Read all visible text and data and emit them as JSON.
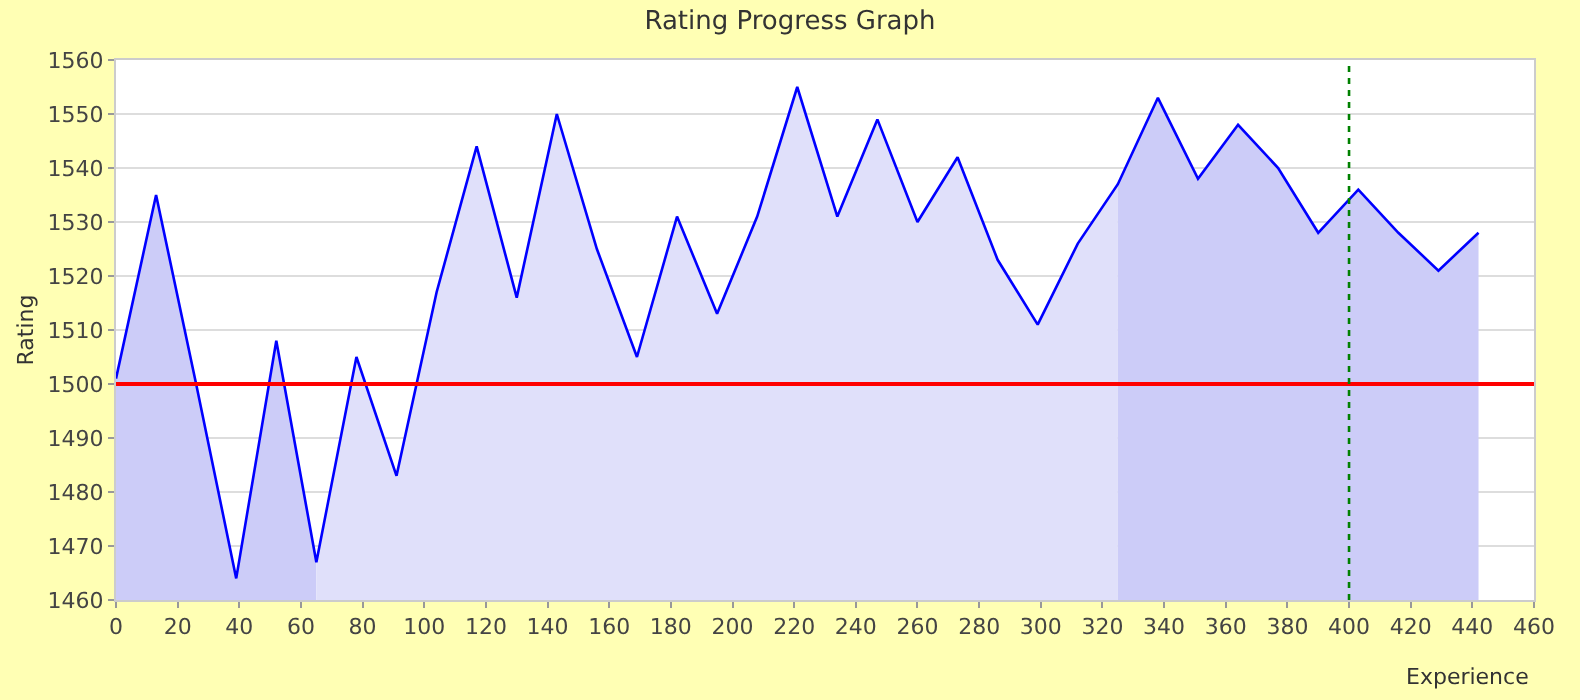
{
  "chart_data": {
    "type": "line",
    "title": "Rating Progress Graph",
    "xlabel": "Experience",
    "ylabel": "Rating",
    "series": [
      {
        "type": "area",
        "color": "#ccccf8",
        "x": [
          0,
          13,
          26,
          39,
          52,
          65
        ],
        "values": [
          1501,
          1535,
          1500,
          1464,
          1508,
          1467
        ]
      },
      {
        "type": "area",
        "color": "#e0e0fa",
        "x": [
          65,
          78,
          91,
          104,
          117,
          130,
          143,
          156,
          169,
          182,
          195,
          208,
          221,
          234,
          247,
          260,
          273,
          286,
          299,
          312,
          325
        ],
        "values": [
          1467,
          1505,
          1483,
          1517,
          1544,
          1516,
          1550,
          1525,
          1505,
          1531,
          1513,
          1531,
          1555,
          1531,
          1549,
          1530,
          1542,
          1523,
          1511,
          1526,
          1537
        ]
      },
      {
        "type": "area",
        "color": "#ccccf8",
        "x": [
          325,
          338,
          351,
          364,
          377,
          390,
          403,
          416,
          429,
          442
        ],
        "values": [
          1537,
          1553,
          1538,
          1548,
          1540,
          1528,
          1536,
          1528,
          1521,
          1528
        ]
      },
      {
        "color": "#0000ff",
        "x": [
          0,
          13,
          26,
          39,
          52,
          65,
          78,
          91,
          104,
          117,
          130,
          143,
          156,
          169,
          182,
          195,
          208,
          221,
          234,
          247,
          260,
          273,
          286,
          299,
          312,
          325,
          338,
          351,
          364,
          377,
          390,
          403,
          416,
          429,
          442
        ],
        "values": [
          1501,
          1535,
          1500,
          1464,
          1508,
          1467,
          1505,
          1483,
          1517,
          1544,
          1516,
          1550,
          1525,
          1505,
          1531,
          1513,
          1531,
          1555,
          1531,
          1549,
          1530,
          1542,
          1523,
          1511,
          1526,
          1537,
          1553,
          1538,
          1548,
          1540,
          1528,
          1536,
          1528,
          1521,
          1528
        ]
      }
    ],
    "ref_lines": [
      {
        "axis": "y",
        "value": 1500,
        "color": "#ff0000",
        "line_style": "solid"
      },
      {
        "axis": "x",
        "value": 400,
        "color": "#008000",
        "line_style": "dotted"
      }
    ],
    "xlim": [
      0,
      460
    ],
    "xticks": [
      0,
      20,
      40,
      60,
      80,
      100,
      120,
      140,
      160,
      180,
      200,
      220,
      240,
      260,
      280,
      300,
      320,
      340,
      360,
      380,
      400,
      420,
      440,
      460
    ],
    "ylim": [
      1460,
      1560
    ],
    "yticks": [
      1460,
      1470,
      1480,
      1490,
      1500,
      1510,
      1520,
      1530,
      1540,
      1550,
      1560
    ],
    "grid": "y",
    "marker": "none"
  }
}
